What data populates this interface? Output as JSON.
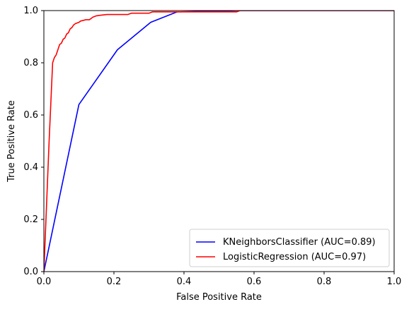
{
  "chart_data": {
    "type": "line",
    "title": "",
    "xlabel": "False Positive Rate",
    "ylabel": "True Positive Rate",
    "xlim": [
      0,
      1
    ],
    "ylim": [
      0,
      1
    ],
    "xticks": [
      "0.0",
      "0.2",
      "0.4",
      "0.6",
      "0.8",
      "1.0"
    ],
    "yticks": [
      "0.0",
      "0.2",
      "0.4",
      "0.6",
      "0.8",
      "1.0"
    ],
    "grid": false,
    "legend_position": "bottom-right",
    "series": [
      {
        "name": "KNeighborsClassifier (AUC=0.89)",
        "color": "#0000ff",
        "points": [
          [
            0.0,
            0.0
          ],
          [
            0.1,
            0.64
          ],
          [
            0.21,
            0.85
          ],
          [
            0.305,
            0.955
          ],
          [
            0.38,
            0.995
          ],
          [
            0.555,
            1.0
          ],
          [
            1.0,
            1.0
          ]
        ]
      },
      {
        "name": "LogisticRegression (AUC=0.97)",
        "color": "#ff0000",
        "points": [
          [
            0.0,
            0.0
          ],
          [
            0.015,
            0.5
          ],
          [
            0.025,
            0.8
          ],
          [
            0.03,
            0.82
          ],
          [
            0.035,
            0.83
          ],
          [
            0.04,
            0.85
          ],
          [
            0.045,
            0.87
          ],
          [
            0.05,
            0.875
          ],
          [
            0.055,
            0.89
          ],
          [
            0.06,
            0.895
          ],
          [
            0.065,
            0.91
          ],
          [
            0.07,
            0.915
          ],
          [
            0.075,
            0.93
          ],
          [
            0.08,
            0.935
          ],
          [
            0.085,
            0.945
          ],
          [
            0.09,
            0.95
          ],
          [
            0.1,
            0.955
          ],
          [
            0.105,
            0.96
          ],
          [
            0.12,
            0.965
          ],
          [
            0.13,
            0.965
          ],
          [
            0.14,
            0.975
          ],
          [
            0.15,
            0.98
          ],
          [
            0.16,
            0.982
          ],
          [
            0.18,
            0.985
          ],
          [
            0.24,
            0.985
          ],
          [
            0.25,
            0.99
          ],
          [
            0.3,
            0.99
          ],
          [
            0.31,
            0.995
          ],
          [
            0.38,
            0.995
          ],
          [
            0.55,
            0.995
          ],
          [
            0.56,
            1.0
          ],
          [
            1.0,
            1.0
          ]
        ]
      }
    ]
  }
}
